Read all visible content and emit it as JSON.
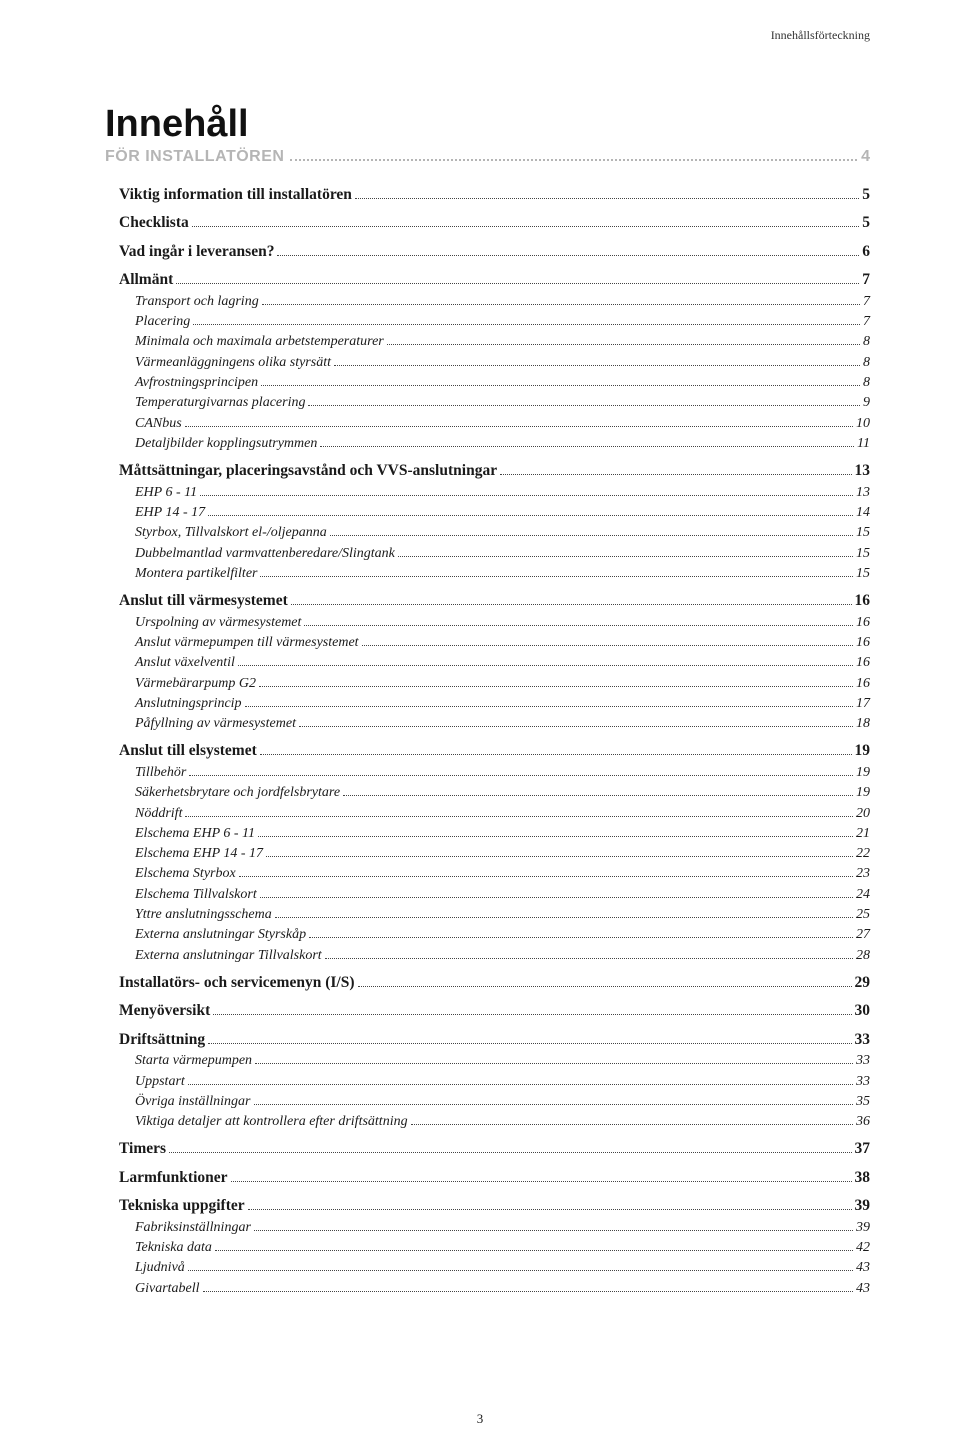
{
  "running_head": "Innehållsförteckning",
  "title": "Innehåll",
  "subtitle": {
    "label": "FÖR INSTALLATÖREN",
    "page": "4"
  },
  "footer_page": "3",
  "colors": {
    "background": "#ffffff",
    "text": "#1a1a1a",
    "subtitle_gray": "#b5b5b5",
    "dot": "#444444"
  },
  "typography": {
    "title_fontsize": 38,
    "subtitle_fontsize": 16,
    "bold_row_fontsize": 15.5,
    "italic_row_fontsize": 14
  },
  "toc": [
    {
      "label": "Viktig information till installatören",
      "page": "5",
      "style": "bold"
    },
    {
      "label": "Checklista",
      "page": "5",
      "style": "bold"
    },
    {
      "label": "Vad ingår i leveransen?",
      "page": "6",
      "style": "bold"
    },
    {
      "label": "Allmänt",
      "page": "7",
      "style": "bold"
    },
    {
      "label": "Transport och lagring",
      "page": "7",
      "style": "italic"
    },
    {
      "label": "Placering",
      "page": "7",
      "style": "italic"
    },
    {
      "label": "Minimala och maximala arbetstemperaturer",
      "page": "8",
      "style": "italic"
    },
    {
      "label": "Värmeanläggningens olika styrsätt",
      "page": "8",
      "style": "italic"
    },
    {
      "label": "Avfrostningsprincipen",
      "page": "8",
      "style": "italic"
    },
    {
      "label": "Temperaturgivarnas placering",
      "page": "9",
      "style": "italic"
    },
    {
      "label": "CANbus",
      "page": "10",
      "style": "italic"
    },
    {
      "label": "Detaljbilder kopplingsutrymmen",
      "page": "11",
      "style": "italic"
    },
    {
      "label": "Måttsättningar, placeringsavstånd och VVS-anslutningar",
      "page": "13",
      "style": "bold"
    },
    {
      "label": "EHP 6 - 11",
      "page": "13",
      "style": "italic"
    },
    {
      "label": "EHP 14 - 17",
      "page": "14",
      "style": "italic"
    },
    {
      "label": "Styrbox, Tillvalskort el-/oljepanna",
      "page": "15",
      "style": "italic"
    },
    {
      "label": "Dubbelmantlad varmvattenberedare/Slingtank",
      "page": "15",
      "style": "italic"
    },
    {
      "label": "Montera partikelfilter",
      "page": "15",
      "style": "italic"
    },
    {
      "label": "Anslut till värmesystemet",
      "page": "16",
      "style": "bold"
    },
    {
      "label": "Urspolning av värmesystemet",
      "page": "16",
      "style": "italic"
    },
    {
      "label": "Anslut värmepumpen till värmesystemet",
      "page": "16",
      "style": "italic"
    },
    {
      "label": "Anslut växelventil",
      "page": "16",
      "style": "italic"
    },
    {
      "label": "Värmebärarpump G2",
      "page": "16",
      "style": "italic"
    },
    {
      "label": "Anslutningsprincip",
      "page": "17",
      "style": "italic"
    },
    {
      "label": "Påfyllning av värmesystemet",
      "page": "18",
      "style": "italic"
    },
    {
      "label": "Anslut till elsystemet",
      "page": "19",
      "style": "bold"
    },
    {
      "label": "Tillbehör",
      "page": "19",
      "style": "italic"
    },
    {
      "label": "Säkerhetsbrytare och jordfelsbrytare",
      "page": "19",
      "style": "italic"
    },
    {
      "label": "Nöddrift",
      "page": "20",
      "style": "italic"
    },
    {
      "label": "Elschema EHP 6 - 11",
      "page": "21",
      "style": "italic"
    },
    {
      "label": "Elschema EHP 14 - 17",
      "page": "22",
      "style": "italic"
    },
    {
      "label": "Elschema Styrbox",
      "page": "23",
      "style": "italic"
    },
    {
      "label": "Elschema Tillvalskort",
      "page": "24",
      "style": "italic"
    },
    {
      "label": "Yttre anslutningsschema",
      "page": "25",
      "style": "italic"
    },
    {
      "label": "Externa anslutningar Styrskåp",
      "page": "27",
      "style": "italic"
    },
    {
      "label": "Externa anslutningar Tillvalskort",
      "page": "28",
      "style": "italic"
    },
    {
      "label": "Installatörs- och servicemenyn (I/S)",
      "page": "29",
      "style": "bold"
    },
    {
      "label": "Menyöversikt",
      "page": "30",
      "style": "bold"
    },
    {
      "label": "Driftsättning",
      "page": "33",
      "style": "bold"
    },
    {
      "label": "Starta värmepumpen",
      "page": "33",
      "style": "italic"
    },
    {
      "label": "Uppstart",
      "page": "33",
      "style": "italic"
    },
    {
      "label": "Övriga inställningar",
      "page": "35",
      "style": "italic"
    },
    {
      "label": "Viktiga detaljer att kontrollera efter driftsättning",
      "page": "36",
      "style": "italic"
    },
    {
      "label": "Timers",
      "page": "37",
      "style": "bold"
    },
    {
      "label": "Larmfunktioner",
      "page": "38",
      "style": "bold"
    },
    {
      "label": "Tekniska uppgifter",
      "page": "39",
      "style": "bold"
    },
    {
      "label": "Fabriksinställningar",
      "page": "39",
      "style": "italic"
    },
    {
      "label": "Tekniska data",
      "page": "42",
      "style": "italic"
    },
    {
      "label": "Ljudnivå",
      "page": "43",
      "style": "italic"
    },
    {
      "label": "Givartabell",
      "page": "43",
      "style": "italic"
    }
  ]
}
